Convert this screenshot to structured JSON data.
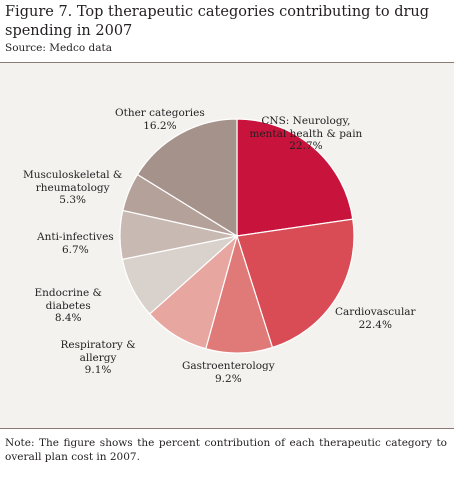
{
  "title": "Figure 7. Top therapeutic categories contributing to drug spending in 2007",
  "source": "Source: Medco data",
  "note": "Note: The figure shows the percent contribution of each therapeutic category to overall plan cost in 2007.",
  "chart_data": {
    "type": "pie",
    "title": "Figure 7. Top therapeutic categories contributing to drug spending in 2007",
    "slices": [
      {
        "name_lines": [
          "CNS: Neurology,",
          "mental health & pain"
        ],
        "value_label": "22.7%",
        "value": 22.7,
        "color": "#c8143c"
      },
      {
        "name_lines": [
          "Cardiovascular"
        ],
        "value_label": "22.4%",
        "value": 22.4,
        "color": "#d94b55"
      },
      {
        "name_lines": [
          "Gastroenterology"
        ],
        "value_label": "9.2%",
        "value": 9.2,
        "color": "#e07a78"
      },
      {
        "name_lines": [
          "Respiratory &",
          "allergy"
        ],
        "value_label": "9.1%",
        "value": 9.1,
        "color": "#e8a6a0"
      },
      {
        "name_lines": [
          "Endocrine &",
          "diabetes"
        ],
        "value_label": "8.4%",
        "value": 8.4,
        "color": "#d9d2cc"
      },
      {
        "name_lines": [
          "Anti-infectives"
        ],
        "value_label": "6.7%",
        "value": 6.7,
        "color": "#c8b9b2"
      },
      {
        "name_lines": [
          "Musculoskeletal &",
          "rheumatology"
        ],
        "value_label": "5.3%",
        "value": 5.3,
        "color": "#b4a19a"
      },
      {
        "name_lines": [
          "Other categories"
        ],
        "value_label": "16.2%",
        "value": 16.2,
        "color": "#a5928a"
      }
    ]
  }
}
